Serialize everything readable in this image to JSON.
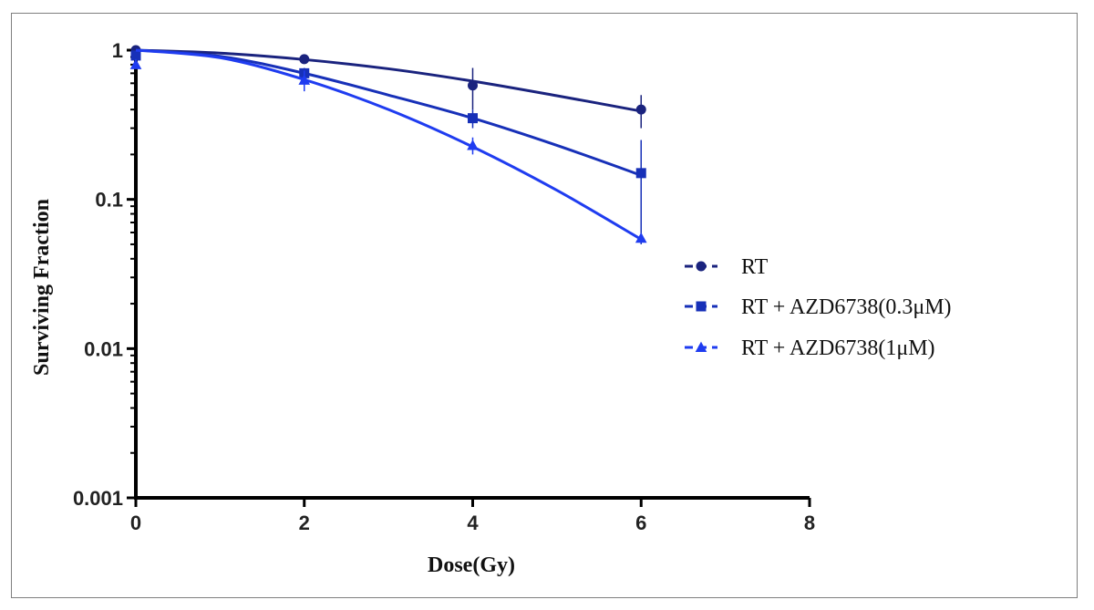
{
  "chart_data": {
    "type": "line",
    "xlabel": "Dose(Gy)",
    "ylabel": "Surviving Fraction",
    "xlim": [
      0,
      8
    ],
    "ylim": [
      0.001,
      1
    ],
    "yscale": "log",
    "x_ticks": [
      "0",
      "2",
      "4",
      "6",
      "8"
    ],
    "y_ticks": [
      "1",
      "0.1",
      "0.01",
      "0.001"
    ],
    "grid": false,
    "legend_position": "right",
    "series": [
      {
        "name": "RT",
        "color": "#1a237e",
        "marker": "circle",
        "x": [
          0,
          2,
          4,
          6
        ],
        "y": [
          1.0,
          0.87,
          0.58,
          0.4
        ],
        "err": [
          0.0,
          0.03,
          0.18,
          0.1
        ],
        "fit": {
          "x": [
            0,
            1,
            2,
            3,
            4,
            5,
            6
          ],
          "y": [
            1.0,
            0.955,
            0.865,
            0.75,
            0.62,
            0.495,
            0.39
          ]
        }
      },
      {
        "name": "RT + AZD6738(0.3μM)",
        "color": "#1730b8",
        "marker": "square",
        "x": [
          0,
          2,
          4,
          6
        ],
        "y": [
          0.92,
          0.7,
          0.35,
          0.15
        ],
        "err": [
          0.05,
          0.06,
          0.05,
          0.1
        ],
        "fit": {
          "x": [
            0,
            1,
            2,
            3,
            4,
            5,
            6
          ],
          "y": [
            1.0,
            0.91,
            0.7,
            0.5,
            0.35,
            0.23,
            0.145
          ]
        }
      },
      {
        "name": "RT + AZD6738(1μM)",
        "color": "#1f3cf0",
        "marker": "triangle",
        "x": [
          0,
          2,
          4,
          6
        ],
        "y": [
          0.8,
          0.63,
          0.23,
          0.055
        ],
        "err": [
          0.05,
          0.1,
          0.03,
          0.0
        ],
        "fit": {
          "x": [
            0,
            1,
            2,
            3,
            4,
            5,
            6
          ],
          "y": [
            1.0,
            0.89,
            0.635,
            0.4,
            0.225,
            0.115,
            0.054
          ]
        }
      }
    ]
  }
}
